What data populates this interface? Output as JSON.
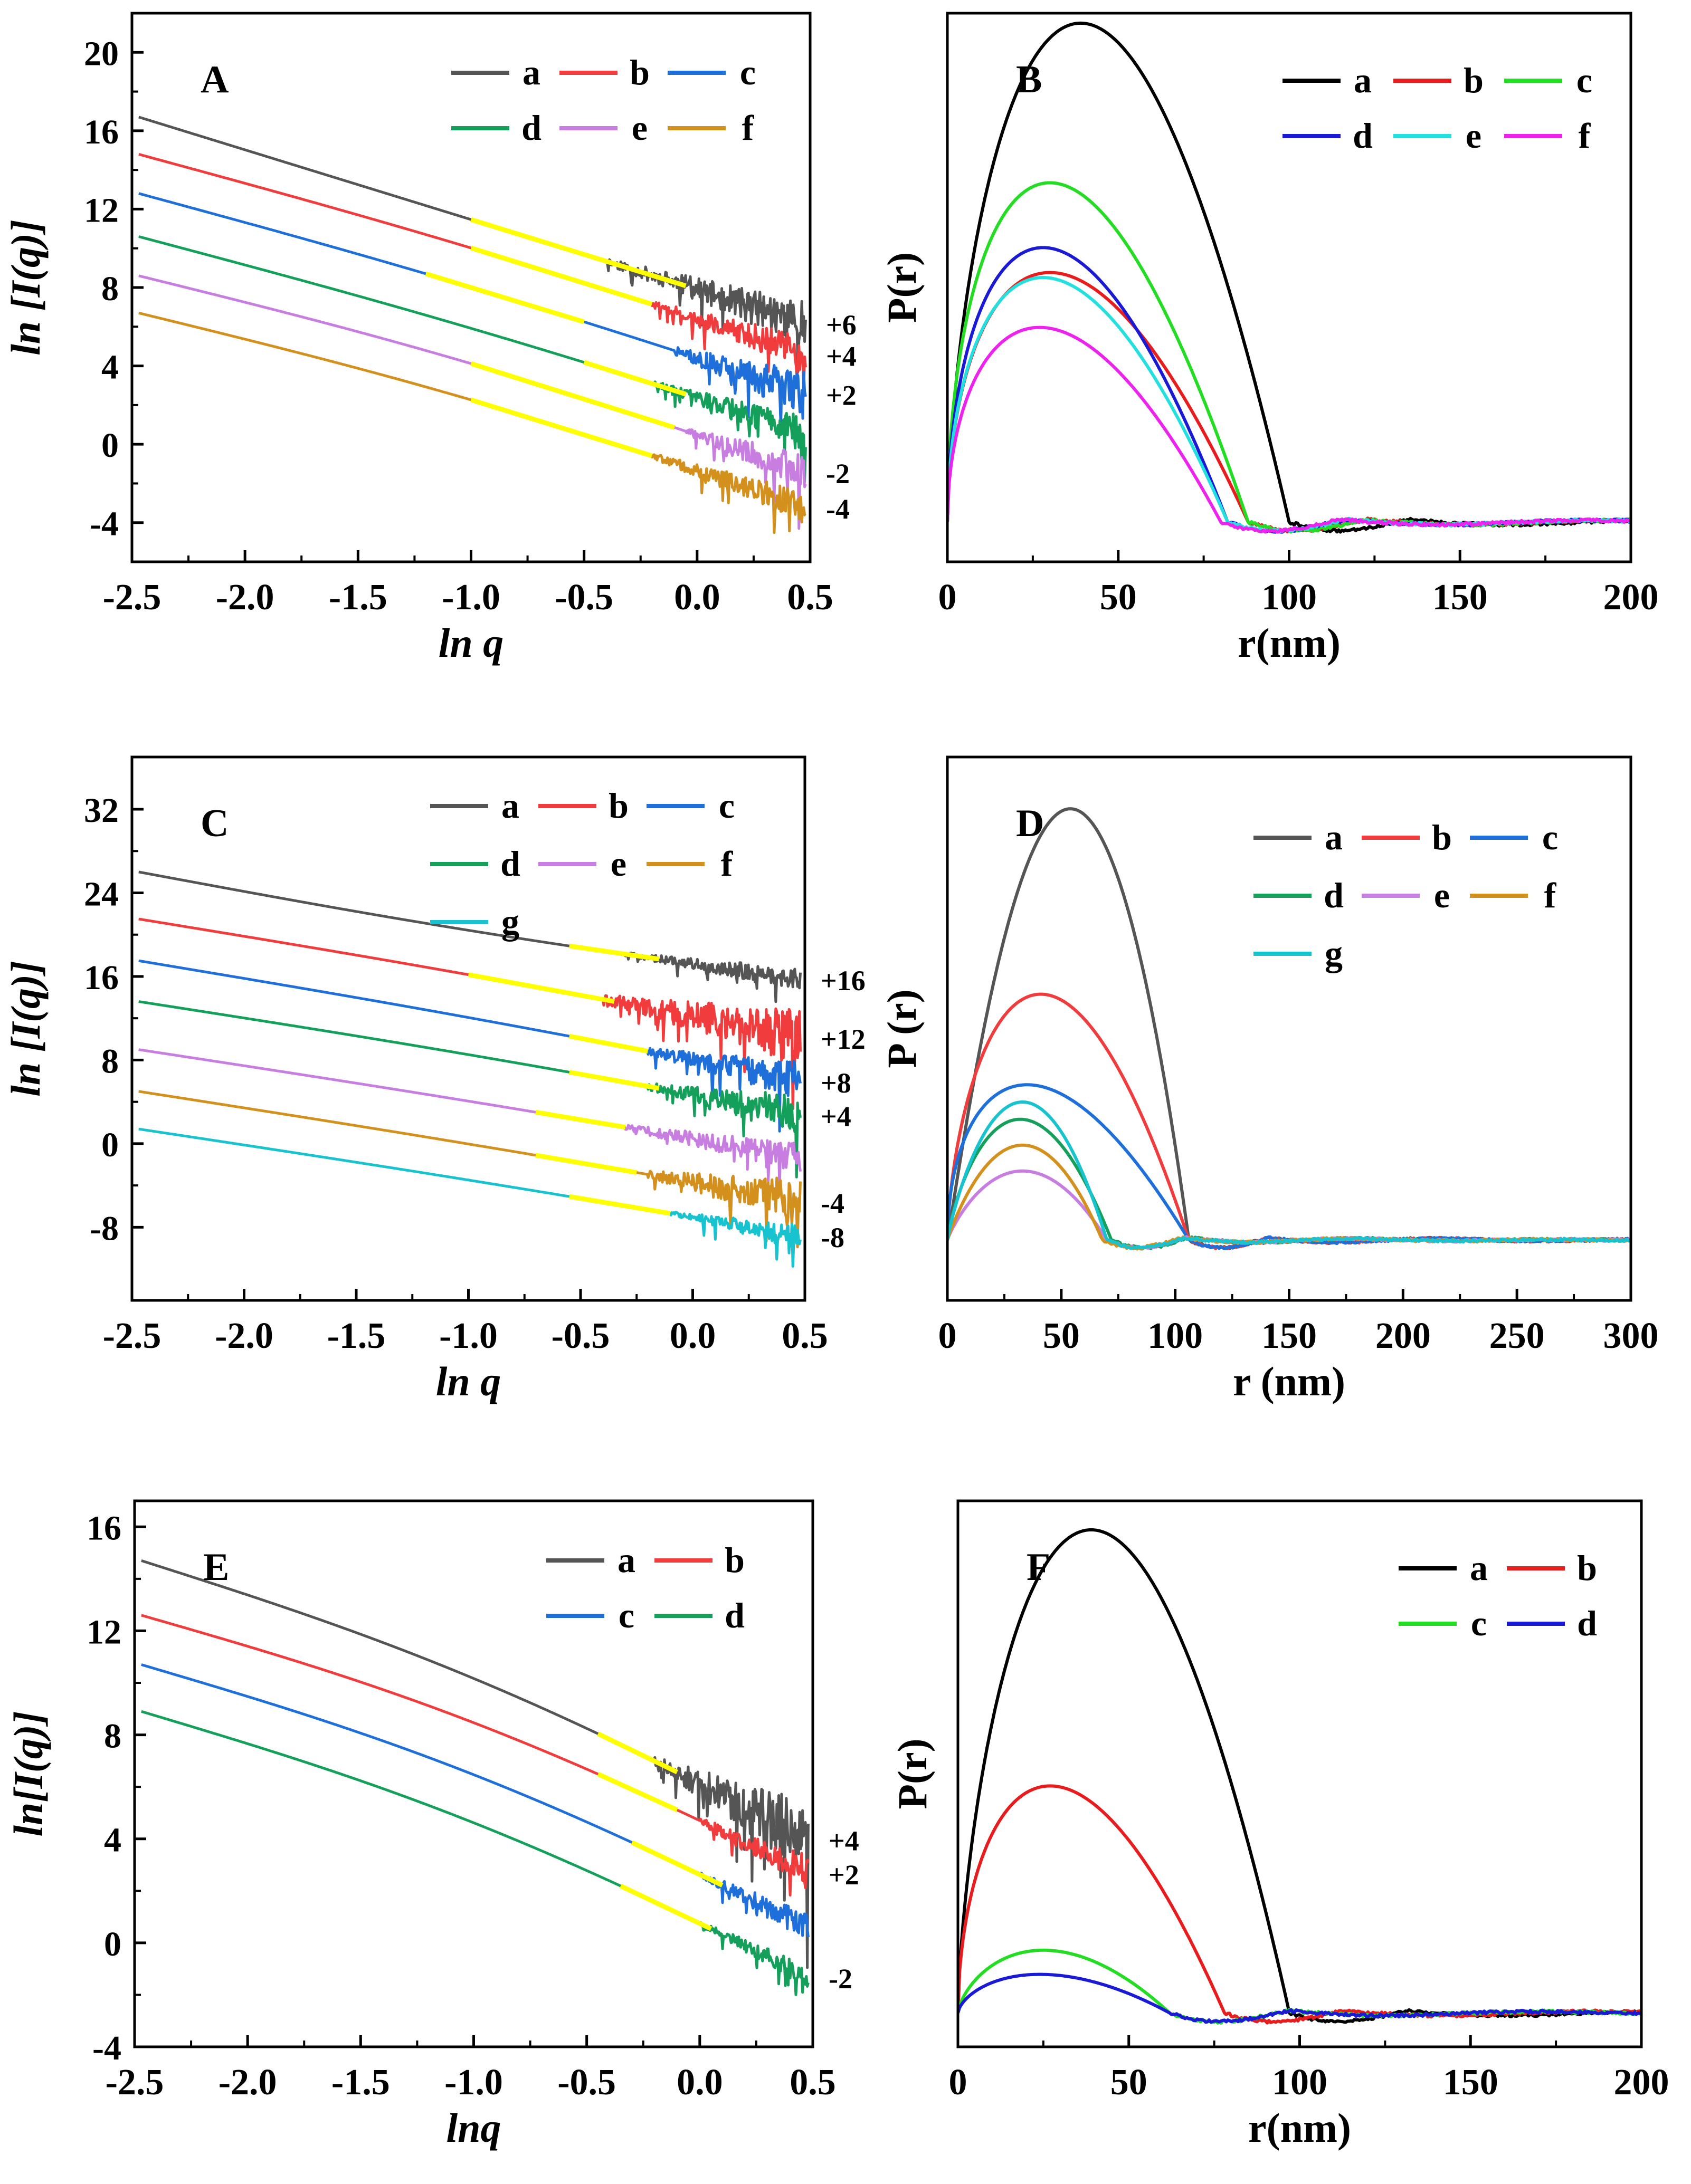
{
  "figure": {
    "description_label": "Six-panel SAXS figure"
  },
  "chart_data": [
    {
      "panel": "A",
      "type": "line",
      "xlabel": "ln q",
      "ylabel": "ln [I(q)]",
      "xlim": [
        -2.5,
        0.5
      ],
      "ylim": [
        -6,
        22
      ],
      "xticks": [
        -2.5,
        -2.0,
        -1.5,
        -1.0,
        -0.5,
        0.0,
        0.5
      ],
      "xtick_labels": [
        "-2.5",
        "-2.0",
        "-1.5",
        "-1.0",
        "-0.5",
        "0.0",
        "0.5"
      ],
      "yticks": [
        -4,
        0,
        4,
        8,
        12,
        16,
        20
      ],
      "ytick_labels": [
        "-4",
        "0",
        "4",
        "8",
        "12",
        "16",
        "20"
      ],
      "legend_cols": 3,
      "legend_position": "top-right",
      "series": [
        {
          "name": "a",
          "color": "#555555",
          "offset_label": "+6",
          "start_y": 16.7,
          "end_y": 6.2,
          "curv": 0.0,
          "noise_start": -0.4,
          "noise_amp": 0.9,
          "fit_range": [
            -1.0,
            -0.05
          ]
        },
        {
          "name": "b",
          "color": "#f03c3c",
          "offset_label": "+4",
          "start_y": 14.8,
          "end_y": 4.6,
          "curv": 0.3,
          "noise_start": -0.2,
          "noise_amp": 0.8,
          "fit_range": [
            -1.0,
            -0.2
          ]
        },
        {
          "name": "c",
          "color": "#1e6fd9",
          "offset_label": "+2",
          "start_y": 12.8,
          "end_y": 2.6,
          "curv": 0.3,
          "noise_start": -0.1,
          "noise_amp": 1.0,
          "fit_range": [
            -1.2,
            -0.5
          ]
        },
        {
          "name": "d",
          "color": "#14a05a",
          "offset_label": "",
          "start_y": 10.6,
          "end_y": 0.6,
          "curv": 0.3,
          "noise_start": -0.2,
          "noise_amp": 0.7,
          "fit_range": [
            -0.5,
            -0.05
          ]
        },
        {
          "name": "e",
          "color": "#c77ee0",
          "offset_label": "-2",
          "start_y": 8.6,
          "end_y": -1.4,
          "curv": 0.5,
          "noise_start": -0.05,
          "noise_amp": 0.8,
          "fit_range": [
            -1.0,
            -0.1
          ]
        },
        {
          "name": "f",
          "color": "#d4901c",
          "offset_label": "-4",
          "start_y": 6.7,
          "end_y": -3.2,
          "curv": 0.5,
          "noise_start": -0.2,
          "noise_amp": 0.7,
          "fit_range": [
            -1.0,
            -0.2
          ]
        }
      ]
    },
    {
      "panel": "B",
      "type": "line",
      "xlabel": "r(nm)",
      "ylabel": "P(r)",
      "xlim": [
        0,
        200
      ],
      "ylim": [
        -0.08,
        1.02
      ],
      "xticks": [
        0,
        50,
        100,
        150,
        200
      ],
      "xtick_labels": [
        "0",
        "50",
        "100",
        "150",
        "200"
      ],
      "legend_cols": 3,
      "legend_position": "top-right",
      "series": [
        {
          "name": "a",
          "color": "#000000",
          "peak_r": 39,
          "peak_height": 1.0,
          "zero_r": 100
        },
        {
          "name": "b",
          "color": "#e81c1c",
          "peak_r": 30,
          "peak_height": 0.5,
          "zero_r": 88
        },
        {
          "name": "c",
          "color": "#22dd22",
          "peak_r": 30,
          "peak_height": 0.68,
          "zero_r": 88
        },
        {
          "name": "d",
          "color": "#1a1ad6",
          "peak_r": 28,
          "peak_height": 0.55,
          "zero_r": 82
        },
        {
          "name": "e",
          "color": "#22e0e0",
          "peak_r": 28,
          "peak_height": 0.49,
          "zero_r": 82
        },
        {
          "name": "f",
          "color": "#ee22ee",
          "peak_r": 27,
          "peak_height": 0.39,
          "zero_r": 80
        }
      ]
    },
    {
      "panel": "C",
      "type": "line",
      "xlabel": "ln q",
      "ylabel": "ln [I(q)]",
      "xlim": [
        -2.5,
        0.5
      ],
      "ylim": [
        -15,
        37
      ],
      "xticks": [
        -2.5,
        -2.0,
        -1.5,
        -1.0,
        -0.5,
        0.0,
        0.5
      ],
      "xtick_labels": [
        "-2.5",
        "-2.0",
        "-1.5",
        "-1.0",
        "-0.5",
        "0.0",
        "0.5"
      ],
      "yticks": [
        -8,
        0,
        8,
        16,
        24,
        32
      ],
      "ytick_labels": [
        "-8",
        "0",
        "8",
        "16",
        "24",
        "32"
      ],
      "legend_cols": 3,
      "legend_position": "top-right",
      "series": [
        {
          "name": "a",
          "color": "#555555",
          "offset_label": "+16",
          "start_y": 26.0,
          "end_y": 15.8,
          "curv": -0.5,
          "noise_start": -0.3,
          "noise_amp": 0.9,
          "fit_range": [
            -0.55,
            -0.15
          ]
        },
        {
          "name": "b",
          "color": "#f03c3c",
          "offset_label": "+12",
          "start_y": 21.5,
          "end_y": 10.2,
          "curv": 0.3,
          "noise_start": -0.4,
          "noise_amp": 2.2,
          "fit_range": [
            -1.0,
            -0.35
          ]
        },
        {
          "name": "c",
          "color": "#1e6fd9",
          "offset_label": "+8",
          "start_y": 17.5,
          "end_y": 6.0,
          "curv": 0.3,
          "noise_start": -0.2,
          "noise_amp": 1.6,
          "fit_range": [
            -0.55,
            -0.2
          ]
        },
        {
          "name": "d",
          "color": "#14a05a",
          "offset_label": "+4",
          "start_y": 13.6,
          "end_y": 2.8,
          "curv": 0.3,
          "noise_start": -0.2,
          "noise_amp": 1.6,
          "fit_range": [
            -0.55,
            -0.15
          ]
        },
        {
          "name": "e",
          "color": "#c77ee0",
          "offset_label": "",
          "start_y": 9.0,
          "end_y": -1.3,
          "curv": 0.2,
          "noise_start": -0.3,
          "noise_amp": 1.2,
          "fit_range": [
            -0.7,
            -0.3
          ]
        },
        {
          "name": "f",
          "color": "#d4901c",
          "offset_label": "-4",
          "start_y": 5.0,
          "end_y": -5.5,
          "curv": 0.2,
          "noise_start": -0.2,
          "noise_amp": 1.8,
          "fit_range": [
            -0.7,
            -0.25
          ]
        },
        {
          "name": "g",
          "color": "#17c3cf",
          "offset_label": "-8",
          "start_y": 1.4,
          "end_y": -8.8,
          "curv": 0.2,
          "noise_start": -0.1,
          "noise_amp": 0.9,
          "fit_range": [
            -0.55,
            -0.1
          ]
        }
      ]
    },
    {
      "panel": "D",
      "type": "line",
      "xlabel": "r (nm)",
      "ylabel": "P (r)",
      "xlim": [
        0,
        300
      ],
      "ylim": [
        -0.14,
        1.12
      ],
      "xticks": [
        0,
        50,
        100,
        150,
        200,
        250,
        300
      ],
      "xtick_labels": [
        "0",
        "50",
        "100",
        "150",
        "200",
        "250",
        "300"
      ],
      "legend_cols": 3,
      "legend_position": "top-right",
      "series": [
        {
          "name": "a",
          "color": "#555555",
          "peak_r": 54,
          "peak_height": 1.0,
          "zero_r": 106
        },
        {
          "name": "b",
          "color": "#f03c3c",
          "peak_r": 41,
          "peak_height": 0.57,
          "zero_r": 106
        },
        {
          "name": "c",
          "color": "#1e6fd9",
          "peak_r": 35,
          "peak_height": 0.36,
          "zero_r": 106
        },
        {
          "name": "d",
          "color": "#14a05a",
          "peak_r": 32,
          "peak_height": 0.28,
          "zero_r": 72
        },
        {
          "name": "e",
          "color": "#c77ee0",
          "peak_r": 33,
          "peak_height": 0.16,
          "zero_r": 70
        },
        {
          "name": "f",
          "color": "#d4901c",
          "peak_r": 33,
          "peak_height": 0.22,
          "zero_r": 68
        },
        {
          "name": "g",
          "color": "#17c3cf",
          "peak_r": 33,
          "peak_height": 0.32,
          "zero_r": 70
        }
      ]
    },
    {
      "panel": "E",
      "type": "line",
      "xlabel": "lnq",
      "ylabel": "ln[I(q)]",
      "xlim": [
        -2.5,
        0.5
      ],
      "ylim": [
        -4,
        17
      ],
      "xticks": [
        -2.5,
        -2.0,
        -1.5,
        -1.0,
        -0.5,
        0.0,
        0.5
      ],
      "xtick_labels": [
        "-2.5",
        "-2.0",
        "-1.5",
        "-1.0",
        "-0.5",
        "0.0",
        "0.5"
      ],
      "yticks": [
        -4,
        0,
        4,
        8,
        12,
        16
      ],
      "ytick_labels": [
        "-4",
        "0",
        "4",
        "8",
        "12",
        "16"
      ],
      "legend_cols": 2,
      "legend_position": "top-right",
      "series": [
        {
          "name": "a",
          "color": "#555555",
          "offset_label": "+4",
          "start_y": 14.7,
          "end_y": 4.0,
          "curv": 0.8,
          "noise_start": -0.2,
          "noise_amp": 1.2,
          "fit_range": [
            -0.45,
            -0.1
          ]
        },
        {
          "name": "b",
          "color": "#f03c3c",
          "offset_label": "+2",
          "start_y": 12.6,
          "end_y": 2.7,
          "curv": 0.8,
          "noise_start": 0.0,
          "noise_amp": 0.6,
          "fit_range": [
            -0.45,
            -0.1
          ]
        },
        {
          "name": "c",
          "color": "#1e6fd9",
          "offset_label": "",
          "start_y": 10.7,
          "end_y": 0.6,
          "curv": 0.8,
          "noise_start": 0.0,
          "noise_amp": 0.5,
          "fit_range": [
            -0.3,
            0.1
          ]
        },
        {
          "name": "d",
          "color": "#14a05a",
          "offset_label": "-2",
          "start_y": 8.9,
          "end_y": -1.3,
          "curv": 0.8,
          "noise_start": 0.0,
          "noise_amp": 0.4,
          "fit_range": [
            -0.35,
            0.05
          ]
        }
      ]
    },
    {
      "panel": "F",
      "type": "line",
      "xlabel": "r(nm)",
      "ylabel": "P(r)",
      "xlim": [
        0,
        200
      ],
      "ylim": [
        -0.07,
        1.06
      ],
      "xticks": [
        0,
        50,
        100,
        150,
        200
      ],
      "xtick_labels": [
        "0",
        "50",
        "100",
        "150",
        "200"
      ],
      "legend_cols": 2,
      "legend_position": "top-right",
      "series": [
        {
          "name": "a",
          "color": "#000000",
          "peak_r": 39,
          "peak_height": 1.0,
          "zero_r": 97
        },
        {
          "name": "b",
          "color": "#e81c1c",
          "peak_r": 27,
          "peak_height": 0.47,
          "zero_r": 78
        },
        {
          "name": "c",
          "color": "#22dd22",
          "peak_r": 25,
          "peak_height": 0.13,
          "zero_r": 62
        },
        {
          "name": "d",
          "color": "#1a1ad6",
          "peak_r": 24,
          "peak_height": 0.08,
          "zero_r": 62
        }
      ]
    }
  ]
}
